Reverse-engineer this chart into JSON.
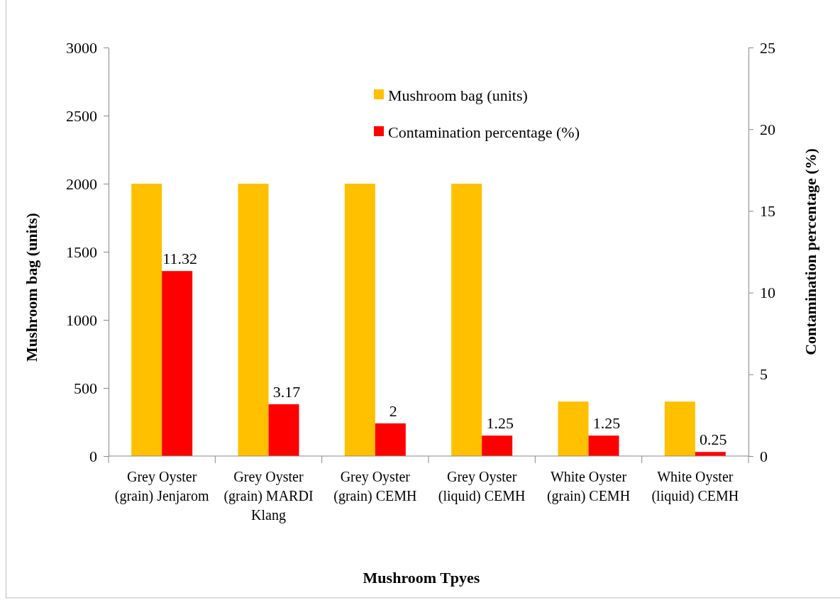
{
  "chart_data": {
    "type": "bar",
    "xlabel": "Mushroom Tpyes",
    "ylabel": "Mushroom bag (units)",
    "y2label": "Contamination percentage  (%)",
    "categories": [
      "Grey Oyster (grain) Jenjarom",
      "Grey Oyster (grain) MARDI Klang",
      "Grey Oyster (grain) CEMH",
      "Grey Oyster (liquid) CEMH",
      "White Oyster (grain) CEMH",
      "White Oyster (liquid) CEMH"
    ],
    "series": [
      {
        "name": "Mushroom bag (units)",
        "color": "#ffc000",
        "values": [
          2000,
          2000,
          2000,
          2000,
          400,
          400
        ]
      },
      {
        "name": "Contamination percentage (%)",
        "color": "#ff0000",
        "axis": "y2",
        "values": [
          11.32,
          3.17,
          2,
          1.25,
          1.25,
          0.25
        ],
        "value_labels": [
          "11.32",
          "3.17",
          "2",
          "1.25",
          "1.25",
          "0.25"
        ]
      }
    ],
    "ylim": [
      0,
      3000
    ],
    "yticks": [
      0,
      500,
      1000,
      1500,
      2000,
      2500,
      3000
    ],
    "y2lim": [
      0,
      25
    ],
    "y2ticks": [
      0,
      5,
      10,
      15,
      20,
      25
    ],
    "legend": "top",
    "grid": false
  }
}
